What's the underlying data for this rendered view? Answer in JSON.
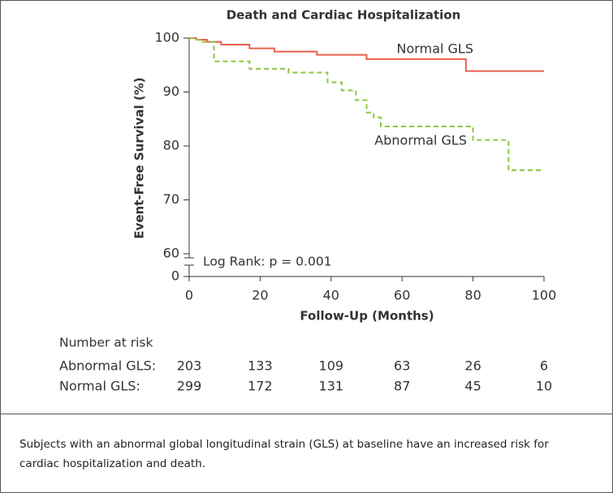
{
  "chart_data": {
    "type": "step",
    "title": "Death and Cardiac Hospitalization",
    "xlabel": "Follow-Up (Months)",
    "ylabel": "Event-Free Survival (%)",
    "xlim": [
      0,
      100
    ],
    "xticks": [
      0,
      20,
      40,
      60,
      80,
      100
    ],
    "ylim": [
      0,
      100
    ],
    "y_break": [
      0,
      60
    ],
    "yticks": [
      0,
      60,
      70,
      80,
      90,
      100
    ],
    "series": [
      {
        "name": "Normal GLS",
        "color": "#e8604c",
        "dashed": false,
        "x": [
          0,
          2,
          5,
          9,
          17,
          24,
          36,
          50,
          78,
          100
        ],
        "values": [
          100,
          99.7,
          99.3,
          98.8,
          98.1,
          97.5,
          96.9,
          96.1,
          93.9,
          93.9
        ]
      },
      {
        "name": "Abnormal GLS",
        "color": "#8dc63f",
        "dashed": true,
        "x": [
          0,
          2,
          3,
          7,
          17,
          28,
          39,
          43,
          47,
          50,
          52,
          54,
          80,
          90,
          100
        ],
        "values": [
          100,
          99.7,
          99.3,
          95.7,
          94.3,
          93.6,
          91.8,
          90.3,
          88.5,
          86.2,
          85.3,
          83.6,
          81.1,
          75.5,
          75.5
        ]
      }
    ],
    "annotation": "Log Rank: p = 0.001",
    "risk_table": {
      "title": "Number at risk",
      "rows": [
        {
          "name": "Abnormal GLS:",
          "values": [
            203,
            133,
            109,
            63,
            26,
            6
          ]
        },
        {
          "name": "Normal GLS:",
          "values": [
            299,
            172,
            131,
            87,
            45,
            10
          ]
        }
      ]
    }
  },
  "caption": "Subjects with an abnormal global longitudinal strain (GLS) at baseline have an increased risk for cardiac hospitalization and death."
}
